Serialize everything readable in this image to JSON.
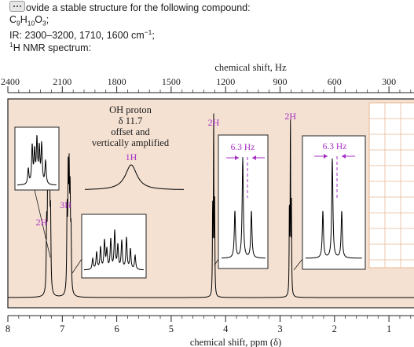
{
  "question": {
    "line1": "ovide a stable structure for the following compound:",
    "formula": {
      "c": "C",
      "c_n": "9",
      "h": "H",
      "h_n": "10",
      "o": "O",
      "o_n": "3",
      "end": ";"
    },
    "ir": "IR: 2300–3200, 1710, 1600 cm",
    "ir_sup": "−1",
    "ir_end": ";",
    "nmr_sup": "1",
    "nmr_label": "H NMR spectrum:",
    "badge_icon": "speech-bubble-icon"
  },
  "colors": {
    "panel_bg": "#f4e1d2",
    "annotation": "#a62fc4",
    "grid": "#e8b894",
    "trace": "#000000"
  },
  "chart_data": {
    "type": "line",
    "spectrometer_mhz": 300,
    "top_axis": {
      "label": "chemical shift, Hz",
      "ticks": [
        2400,
        2100,
        1800,
        1500,
        1200,
        900,
        600,
        300
      ],
      "tick_labels": [
        "2400",
        "2100",
        "1800",
        "1500",
        "1200",
        "900",
        "600",
        "300"
      ]
    },
    "bottom_axis": {
      "label": "chemical shift, ppm (δ)",
      "range": [
        8,
        0.45
      ],
      "ticks": [
        8,
        7,
        6,
        5,
        4,
        3,
        2,
        1
      ],
      "tick_labels": [
        "8",
        "7",
        "6",
        "5",
        "4",
        "3",
        "2",
        "1"
      ]
    },
    "peaks": [
      {
        "ppm": 7.25,
        "label": "2H",
        "height": 0.62,
        "multiplet": "complex"
      },
      {
        "ppm": 6.88,
        "label": "3H",
        "height": 0.58,
        "multiplet": "complex"
      },
      {
        "ppm": 4.22,
        "label": "2H",
        "height": 0.93,
        "multiplet": "triplet"
      },
      {
        "ppm": 2.81,
        "label": "2H",
        "height": 0.93,
        "multiplet": "triplet"
      }
    ],
    "insets": {
      "aromatic_2h": {},
      "aromatic_3h": {},
      "triplet_4_2": {
        "coupling": "6.3 Hz"
      },
      "triplet_2_8": {
        "coupling": "6.3 Hz"
      },
      "oh": {
        "title": "OH proton",
        "shift": "δ 11.7",
        "note1": "offset and",
        "note2": "vertically amplified",
        "integration": "1H"
      }
    }
  }
}
